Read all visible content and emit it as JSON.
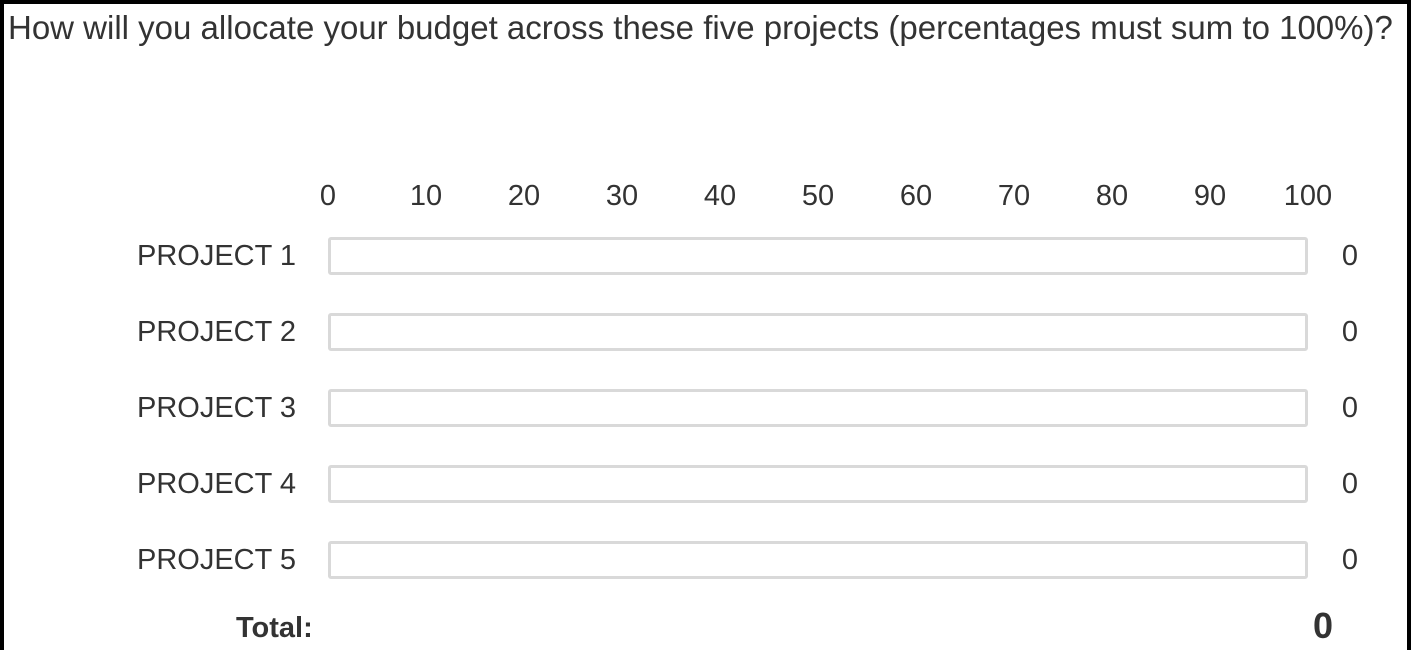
{
  "question": {
    "text": "How will you allocate your budget across these five projects (percentages must sum to 100%)?"
  },
  "scale": {
    "ticks": [
      "0",
      "10",
      "20",
      "30",
      "40",
      "50",
      "60",
      "70",
      "80",
      "90",
      "100"
    ],
    "min": 0,
    "max": 100
  },
  "rows": [
    {
      "label": "PROJECT 1",
      "value": "0"
    },
    {
      "label": "PROJECT 2",
      "value": "0"
    },
    {
      "label": "PROJECT 3",
      "value": "0"
    },
    {
      "label": "PROJECT 4",
      "value": "0"
    },
    {
      "label": "PROJECT 5",
      "value": "0"
    }
  ],
  "total": {
    "label": "Total:",
    "value": "0"
  },
  "colors": {
    "text": "#333333",
    "track_border": "#d9d9d9",
    "fill": "#6aa0d8",
    "frame": "#000000"
  }
}
